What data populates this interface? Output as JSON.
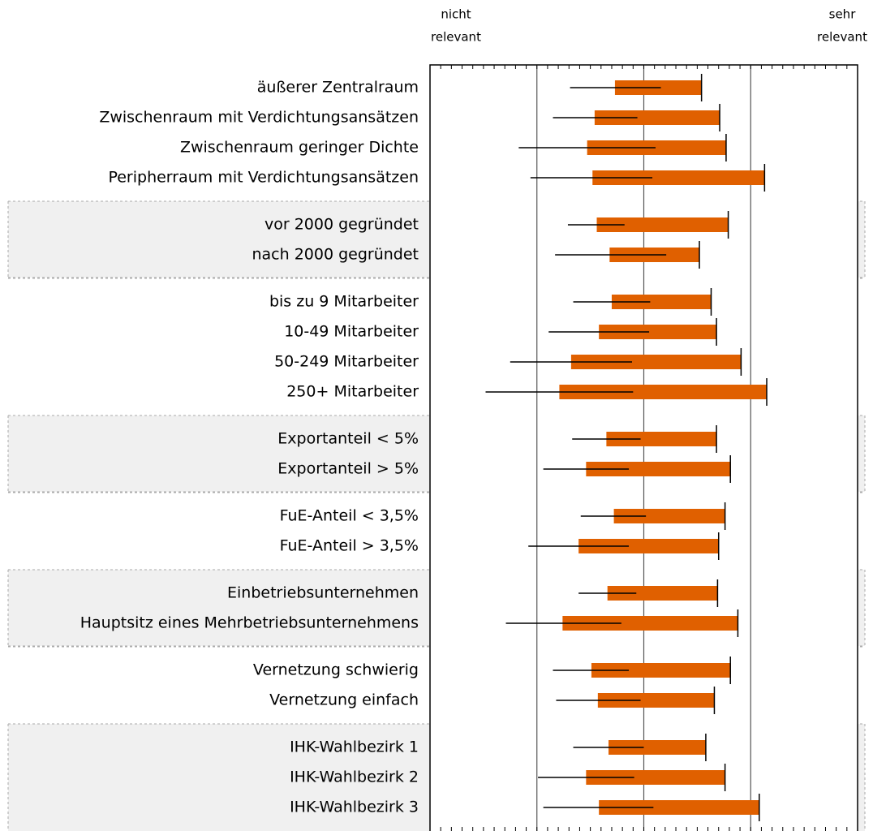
{
  "chart_data": {
    "type": "range-bar",
    "axis_left_label": [
      "nicht",
      "relevant"
    ],
    "axis_right_label": [
      "sehr",
      "relevant"
    ],
    "xlim": [
      1,
      5
    ],
    "xticks": [
      2,
      3,
      4
    ],
    "minor_tick_step": 0.1,
    "bar_color": "#e06000",
    "line_color": "#000000",
    "groups": [
      {
        "rows": [
          {
            "label": "äußerer Zentralraum",
            "bar_start": 2.73,
            "bar_end": 3.54,
            "line_start": 2.31,
            "line_end": 3.16
          },
          {
            "label": "Zwischenraum mit Verdichtungsansätzen",
            "bar_start": 2.54,
            "bar_end": 3.71,
            "line_start": 2.15,
            "line_end": 2.94
          },
          {
            "label": "Zwischenraum geringer Dichte",
            "bar_start": 2.47,
            "bar_end": 3.77,
            "line_start": 1.83,
            "line_end": 3.11
          },
          {
            "label": "Peripherraum mit Verdichtungsansätzen",
            "bar_start": 2.52,
            "bar_end": 4.13,
            "line_start": 1.94,
            "line_end": 3.08
          }
        ]
      },
      {
        "rows": [
          {
            "label": "vor 2000 gegründet",
            "bar_start": 2.56,
            "bar_end": 3.79,
            "line_start": 2.29,
            "line_end": 2.82
          },
          {
            "label": "nach 2000 gegründet",
            "bar_start": 2.68,
            "bar_end": 3.52,
            "line_start": 2.17,
            "line_end": 3.21
          }
        ]
      },
      {
        "rows": [
          {
            "label": "bis zu 9 Mitarbeiter",
            "bar_start": 2.7,
            "bar_end": 3.63,
            "line_start": 2.34,
            "line_end": 3.06
          },
          {
            "label": "10-49 Mitarbeiter",
            "bar_start": 2.58,
            "bar_end": 3.68,
            "line_start": 2.11,
            "line_end": 3.05
          },
          {
            "label": "50-249 Mitarbeiter",
            "bar_start": 2.32,
            "bar_end": 3.91,
            "line_start": 1.75,
            "line_end": 2.89
          },
          {
            "label": "250+ Mitarbeiter",
            "bar_start": 2.21,
            "bar_end": 4.15,
            "line_start": 1.52,
            "line_end": 2.9
          }
        ]
      },
      {
        "rows": [
          {
            "label": "Exportanteil < 5%",
            "bar_start": 2.65,
            "bar_end": 3.68,
            "line_start": 2.33,
            "line_end": 2.97
          },
          {
            "label": "Exportanteil > 5%",
            "bar_start": 2.46,
            "bar_end": 3.81,
            "line_start": 2.06,
            "line_end": 2.86
          }
        ]
      },
      {
        "rows": [
          {
            "label": "FuE-Anteil < 3,5%",
            "bar_start": 2.72,
            "bar_end": 3.76,
            "line_start": 2.41,
            "line_end": 3.02
          },
          {
            "label": "FuE-Anteil > 3,5%",
            "bar_start": 2.39,
            "bar_end": 3.7,
            "line_start": 1.92,
            "line_end": 2.86
          }
        ]
      },
      {
        "rows": [
          {
            "label": "Einbetriebsunternehmen",
            "bar_start": 2.66,
            "bar_end": 3.69,
            "line_start": 2.39,
            "line_end": 2.93
          },
          {
            "label": "Hauptsitz eines Mehrbetriebsunternehmens",
            "bar_start": 2.24,
            "bar_end": 3.88,
            "line_start": 1.71,
            "line_end": 2.79
          }
        ]
      },
      {
        "rows": [
          {
            "label": "Vernetzung schwierig",
            "bar_start": 2.51,
            "bar_end": 3.81,
            "line_start": 2.15,
            "line_end": 2.86
          },
          {
            "label": "Vernetzung einfach",
            "bar_start": 2.57,
            "bar_end": 3.66,
            "line_start": 2.18,
            "line_end": 2.97
          }
        ]
      },
      {
        "rows": [
          {
            "label": "IHK-Wahlbezirk 1",
            "bar_start": 2.67,
            "bar_end": 3.58,
            "line_start": 2.34,
            "line_end": 3.0
          },
          {
            "label": "IHK-Wahlbezirk 2",
            "bar_start": 2.46,
            "bar_end": 3.76,
            "line_start": 2.01,
            "line_end": 2.91
          },
          {
            "label": "IHK-Wahlbezirk 3",
            "bar_start": 2.58,
            "bar_end": 4.08,
            "line_start": 2.06,
            "line_end": 3.09
          }
        ]
      }
    ]
  }
}
